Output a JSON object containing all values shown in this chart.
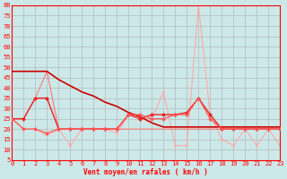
{
  "x": [
    0,
    1,
    2,
    3,
    4,
    5,
    6,
    7,
    8,
    9,
    10,
    11,
    12,
    13,
    14,
    15,
    16,
    17,
    18,
    19,
    20,
    21,
    22,
    23
  ],
  "line_diagonal": {
    "y": [
      48,
      48,
      48,
      48,
      44,
      41,
      38,
      36,
      33,
      31,
      28,
      26,
      23,
      21,
      21,
      21,
      21,
      21,
      21,
      21,
      21,
      21,
      21,
      21
    ],
    "color": "#cc0000",
    "lw": 1.2,
    "marker": null,
    "ms": 0,
    "zorder": 3,
    "ls": "-"
  },
  "line_medium": {
    "y": [
      25,
      25,
      35,
      35,
      20,
      20,
      20,
      20,
      20,
      20,
      27,
      25,
      27,
      27,
      27,
      28,
      35,
      27,
      20,
      20,
      20,
      20,
      20,
      20
    ],
    "color": "#ee2222",
    "lw": 1.0,
    "marker": "D",
    "ms": 2.2,
    "zorder": 4,
    "ls": "-"
  },
  "line_flat": {
    "y": [
      25,
      20,
      20,
      18,
      20,
      20,
      20,
      20,
      20,
      20,
      27,
      27,
      25,
      25,
      27,
      27,
      35,
      25,
      20,
      20,
      20,
      20,
      20,
      20
    ],
    "color": "#ff5555",
    "lw": 0.9,
    "marker": "D",
    "ms": 2.0,
    "zorder": 5,
    "ls": "-"
  },
  "line_gust": {
    "y": [
      25,
      20,
      20,
      17,
      20,
      12,
      20,
      20,
      20,
      18,
      27,
      25,
      25,
      38,
      12,
      12,
      80,
      27,
      15,
      12,
      20,
      12,
      20,
      12
    ],
    "color": "#ffaaaa",
    "lw": 0.8,
    "marker": "v",
    "ms": 2.0,
    "zorder": 2,
    "ls": "-"
  },
  "line_start": {
    "y": [
      25,
      25,
      35,
      48,
      20,
      20,
      20,
      20,
      20,
      20,
      20,
      20,
      20,
      20,
      20,
      20,
      20,
      20,
      20,
      20,
      20,
      20,
      20,
      20
    ],
    "color": "#ff7777",
    "lw": 0.8,
    "marker": null,
    "ms": 0,
    "zorder": 2,
    "ls": "-"
  },
  "bg_color": "#cce8e8",
  "grid_major_color": "#aaaaaa",
  "grid_minor_color": "#bbcccc",
  "xlabel": "Vent moyen/en rafales ( km/h )",
  "yticks": [
    5,
    10,
    15,
    20,
    25,
    30,
    35,
    40,
    45,
    50,
    55,
    60,
    65,
    70,
    75,
    80
  ],
  "ylim": [
    5,
    80
  ],
  "xlim": [
    0,
    23
  ]
}
